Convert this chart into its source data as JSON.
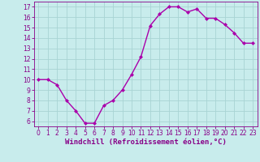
{
  "x": [
    0,
    1,
    2,
    3,
    4,
    5,
    6,
    7,
    8,
    9,
    10,
    11,
    12,
    13,
    14,
    15,
    16,
    17,
    18,
    19,
    20,
    21,
    22,
    23
  ],
  "y": [
    10,
    10,
    9.5,
    8,
    7,
    5.8,
    5.8,
    7.5,
    8,
    9,
    10.5,
    12.2,
    15.2,
    16.3,
    17,
    17,
    16.5,
    16.8,
    15.9,
    15.9,
    15.3,
    14.5,
    13.5,
    13.5
  ],
  "line_color": "#aa00aa",
  "marker": "D",
  "marker_size": 2,
  "bg_color": "#c8ecec",
  "grid_color": "#a8d4d4",
  "xlabel": "Windchill (Refroidissement éolien,°C)",
  "xlim": [
    -0.5,
    23.5
  ],
  "ylim": [
    5.5,
    17.5
  ],
  "yticks": [
    6,
    7,
    8,
    9,
    10,
    11,
    12,
    13,
    14,
    15,
    16,
    17
  ],
  "xticks": [
    0,
    1,
    2,
    3,
    4,
    5,
    6,
    7,
    8,
    9,
    10,
    11,
    12,
    13,
    14,
    15,
    16,
    17,
    18,
    19,
    20,
    21,
    22,
    23
  ],
  "tick_color": "#880088",
  "tick_fontsize": 5.5,
  "xlabel_fontsize": 6.5,
  "spine_color": "#880088",
  "line_width": 1.0
}
